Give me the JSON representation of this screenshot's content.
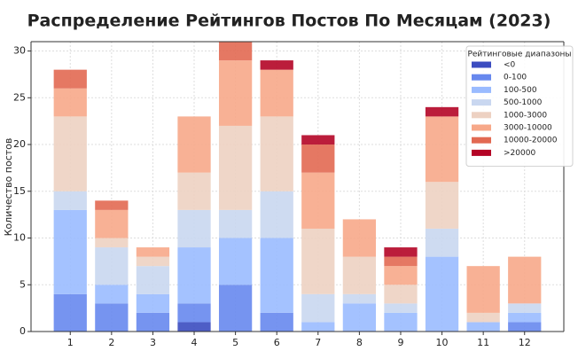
{
  "chart_data": {
    "type": "stacked-bar",
    "title": "Распределение Рейтингов Постов По Месяцам (2023)",
    "y_label": "Количество постов",
    "legend_title": "Рейтинговые диапазоны",
    "x": [
      1,
      2,
      3,
      4,
      5,
      6,
      7,
      8,
      9,
      10,
      11,
      12
    ],
    "xlim": [
      0.05,
      12.95
    ],
    "xticks": [
      1,
      2,
      3,
      4,
      5,
      6,
      7,
      8,
      9,
      10,
      11,
      12
    ],
    "ylim": [
      0,
      31
    ],
    "yticks": [
      0,
      5,
      10,
      15,
      20,
      25,
      30
    ],
    "grid": true,
    "legend": "upper right",
    "series": [
      {
        "name": "<0",
        "color": "#3b4cc0",
        "values": [
          0,
          0,
          0,
          1,
          0,
          0,
          0,
          0,
          0,
          0,
          0,
          0
        ]
      },
      {
        "name": "0-100",
        "color": "#6788ee",
        "values": [
          4,
          3,
          2,
          2,
          5,
          2,
          0,
          0,
          0,
          0,
          0,
          1
        ]
      },
      {
        "name": "100-500",
        "color": "#9abbff",
        "values": [
          9,
          2,
          2,
          6,
          5,
          8,
          1,
          3,
          2,
          8,
          1,
          1
        ]
      },
      {
        "name": "500-1000",
        "color": "#c9d7f0",
        "values": [
          2,
          4,
          3,
          4,
          3,
          5,
          3,
          1,
          1,
          3,
          0,
          1
        ]
      },
      {
        "name": "1000-3000",
        "color": "#edd1c2",
        "values": [
          8,
          1,
          1,
          4,
          9,
          8,
          7,
          4,
          2,
          5,
          1,
          0
        ]
      },
      {
        "name": "3000-10000",
        "color": "#f7a889",
        "values": [
          3,
          3,
          1,
          6,
          7,
          5,
          6,
          4,
          2,
          7,
          5,
          5
        ]
      },
      {
        "name": "10000-20000",
        "color": "#e26952",
        "values": [
          2,
          1,
          0,
          0,
          2,
          0,
          3,
          0,
          1,
          0,
          0,
          0
        ]
      },
      {
        "name": ">20000",
        "color": "#b40426",
        "values": [
          0,
          0,
          0,
          0,
          0,
          1,
          1,
          0,
          1,
          1,
          0,
          0
        ]
      }
    ]
  }
}
